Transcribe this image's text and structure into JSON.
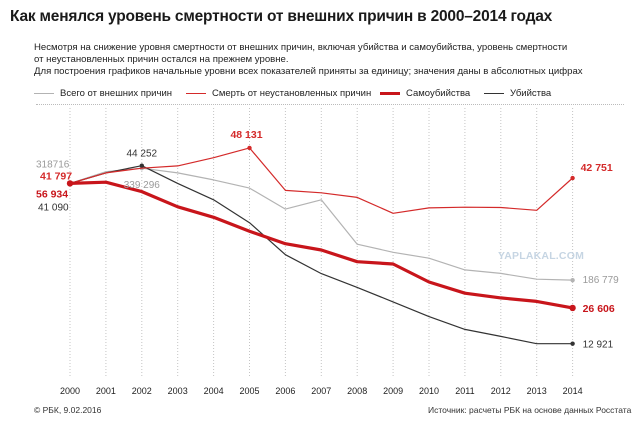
{
  "title": "Как менялся уровень смертности от внешних причин в 2000–2014 годах",
  "subtitle_lines": [
    "Несмотря на снижение  уровня смертности от внешних причин, включая убийства и самоубийства, уровень смертности",
    "от неустановленных причин остался на прежнем уровне."
  ],
  "note": "Для построения графиков начальные уровни всех показателей приняты за единицу; значения даны в абсолютных цифрах",
  "footer": {
    "left": "© РБК, 9.02.2016",
    "right": "Источник: расчеты РБК на основе данных Росстата"
  },
  "watermark": "YAPLAKAL.COM",
  "chart_data": {
    "type": "line",
    "x": [
      "2000",
      "2001",
      "2002",
      "2003",
      "2004",
      "2005",
      "2006",
      "2007",
      "2008",
      "2009",
      "2010",
      "2011",
      "2012",
      "2013",
      "2014"
    ],
    "ylim": [
      0.15,
      1.28
    ],
    "grid": "vertical dotted",
    "legend_position": "top",
    "series": [
      {
        "name": "Всего от внешних причин",
        "color": "#b3b3b3",
        "width": 1.2,
        "values": [
          1.0,
          1.05,
          1.065,
          1.045,
          1.015,
          0.98,
          0.89,
          0.93,
          0.74,
          0.705,
          0.68,
          0.63,
          0.615,
          0.59,
          0.586
        ],
        "labels": [
          {
            "index": 0,
            "text": "318716",
            "color": "#9a9a9a"
          },
          {
            "index": 2,
            "text": "339 296",
            "color": "#9a9a9a"
          },
          {
            "index": 14,
            "text": "186 779",
            "color": "#9a9a9a"
          }
        ]
      },
      {
        "name": "Смерть от неустановленных причин",
        "color": "#d42a2a",
        "width": 1.2,
        "values": [
          1.0,
          1.045,
          1.065,
          1.075,
          1.11,
          1.152,
          0.97,
          0.96,
          0.94,
          0.872,
          0.895,
          0.898,
          0.897,
          0.885,
          1.023
        ],
        "labels": [
          {
            "index": 0,
            "text": "41 797",
            "color": "#d42a2a"
          },
          {
            "index": 5,
            "text": "48 131",
            "color": "#d42a2a"
          },
          {
            "index": 14,
            "text": "42 751",
            "color": "#d42a2a"
          }
        ]
      },
      {
        "name": "Самоубийства",
        "color": "#c8151b",
        "width": 3.2,
        "values": [
          1.0,
          1.005,
          0.965,
          0.9,
          0.855,
          0.795,
          0.742,
          0.715,
          0.665,
          0.655,
          0.578,
          0.53,
          0.51,
          0.495,
          0.467
        ],
        "labels": [
          {
            "index": 0,
            "text": "56 934",
            "color": "#c8151b"
          },
          {
            "index": 14,
            "text": "26 606",
            "color": "#c8151b"
          }
        ]
      },
      {
        "name": "Убийства",
        "color": "#333333",
        "width": 1.2,
        "values": [
          1.0,
          1.045,
          1.076,
          1.0,
          0.93,
          0.832,
          0.695,
          0.614,
          0.555,
          0.493,
          0.43,
          0.375,
          0.345,
          0.314,
          0.314
        ],
        "labels": [
          {
            "index": 0,
            "text": "41 090",
            "color": "#333333"
          },
          {
            "index": 2,
            "text": "44 252",
            "color": "#333333"
          },
          {
            "index": 14,
            "text": "12 921",
            "color": "#333333"
          }
        ]
      }
    ]
  }
}
